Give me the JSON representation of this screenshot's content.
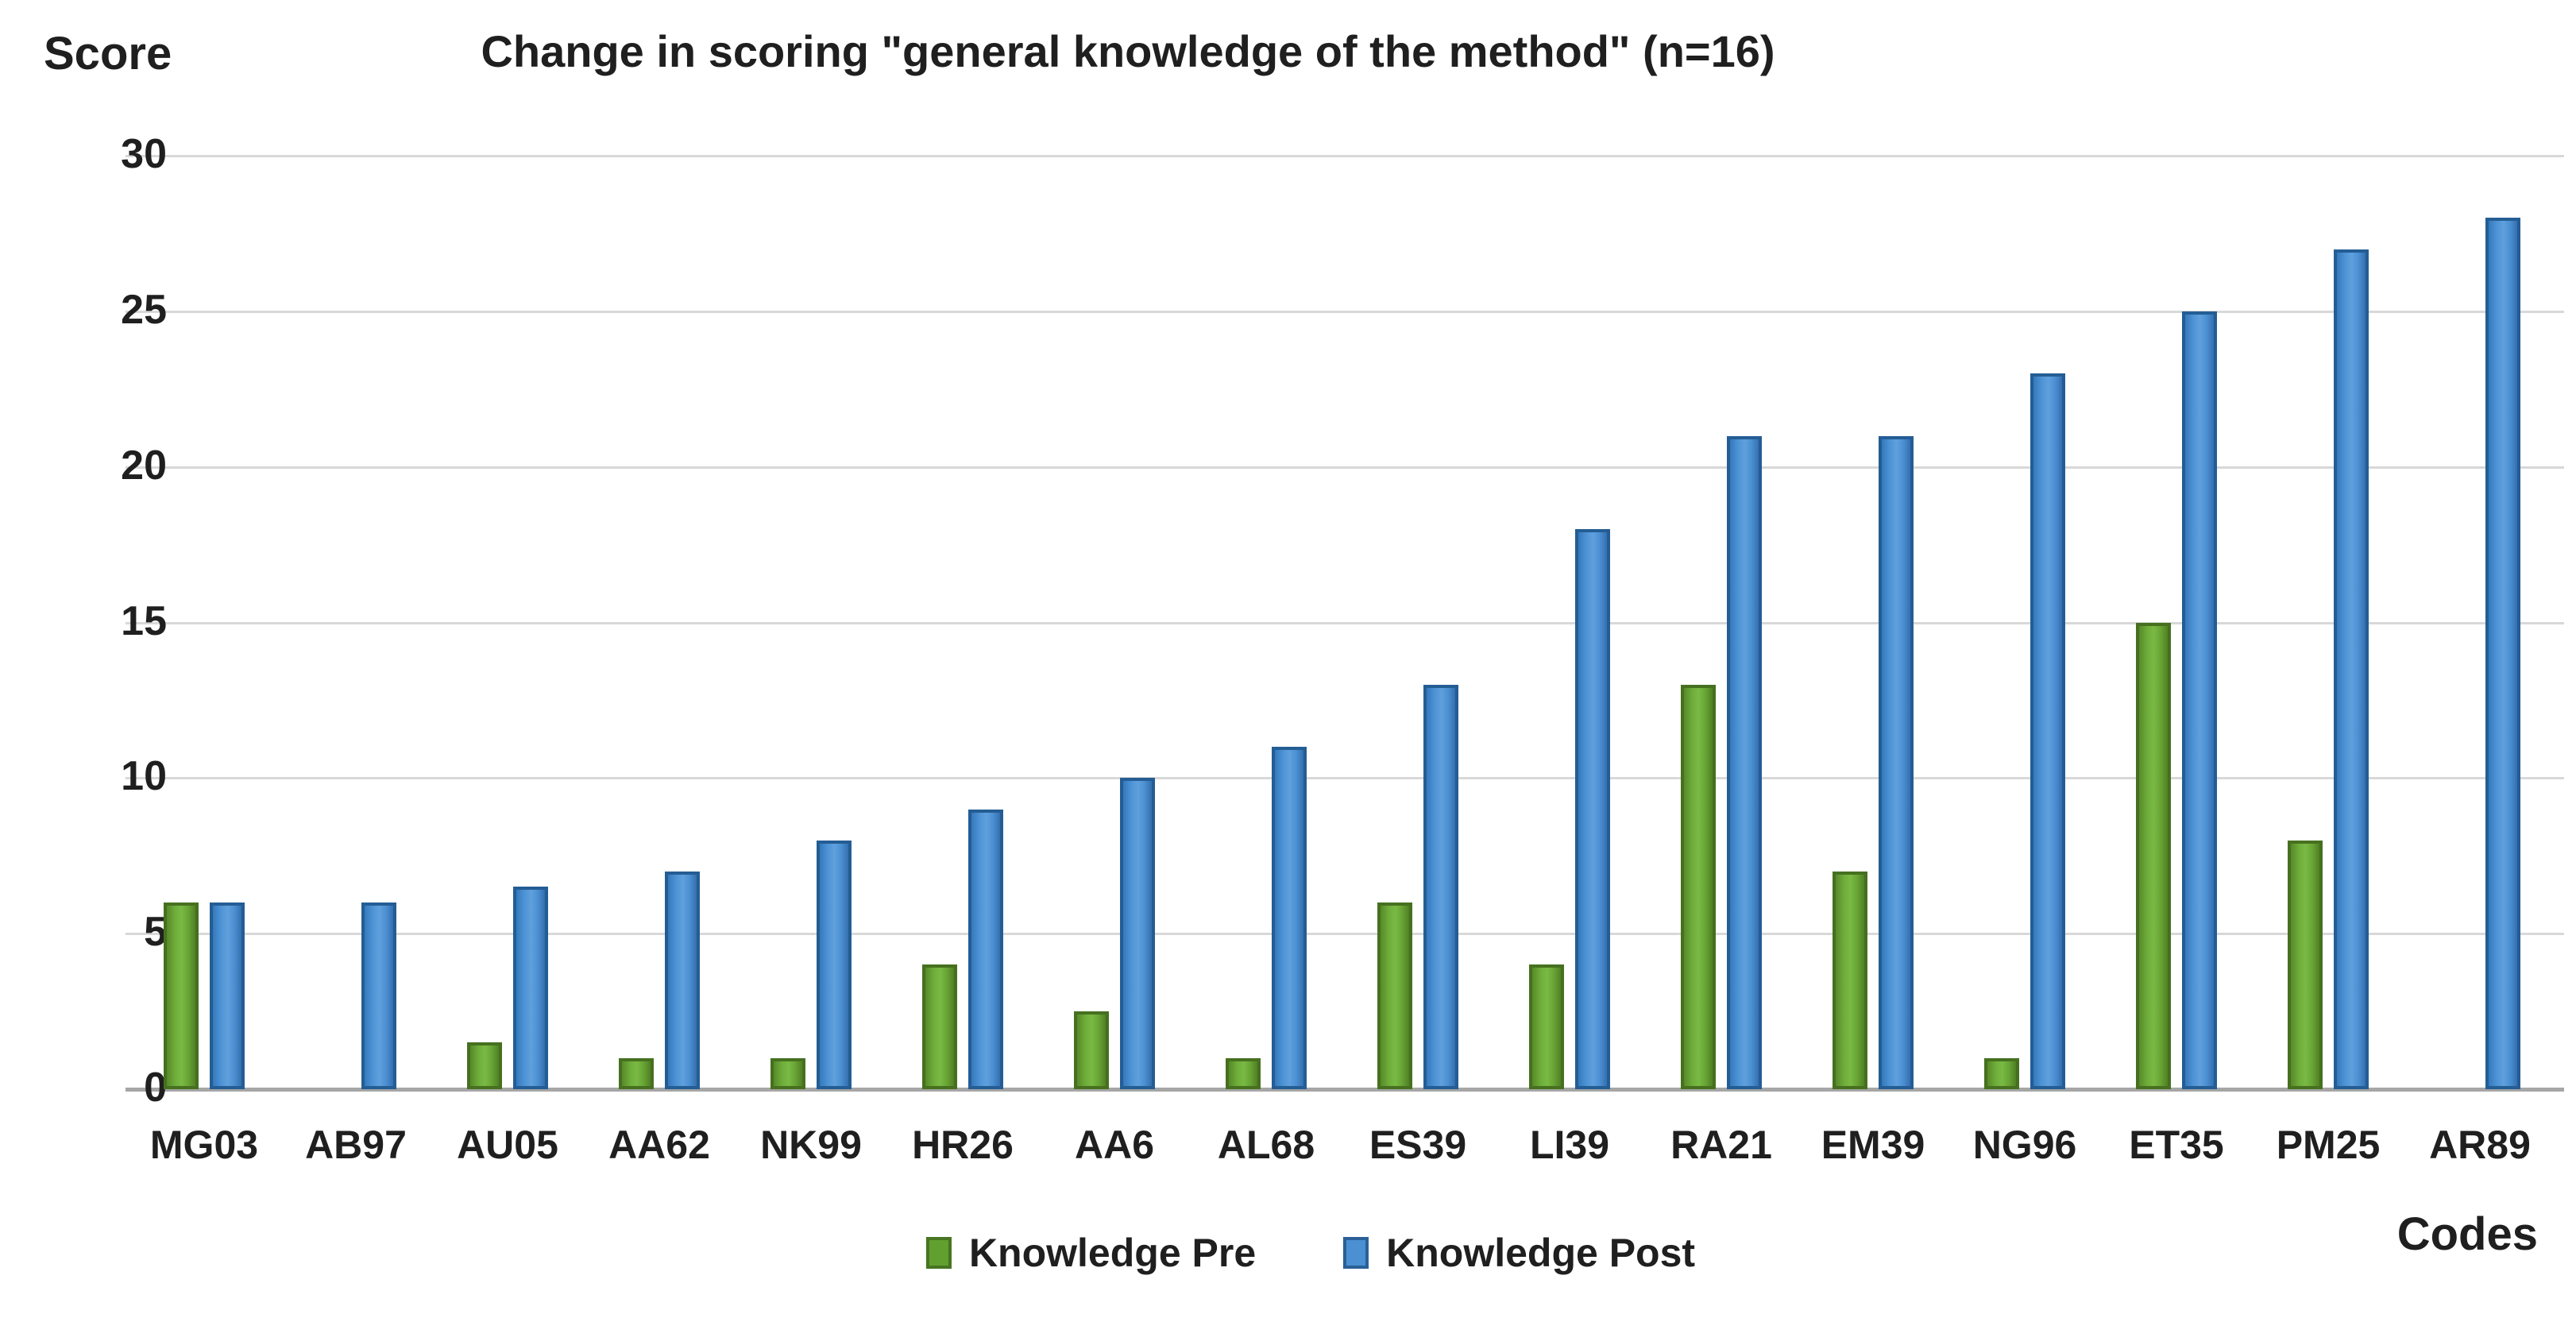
{
  "chart_data": {
    "type": "bar",
    "title": "Change in scoring \"general knowledge of the method\" (n=16)",
    "ylabel": "Score",
    "xlabel": "Codes",
    "categories": [
      "MG03",
      "AB97",
      "AU05",
      "AA62",
      "NK99",
      "HR26",
      "AA6",
      "AL68",
      "ES39",
      "LI39",
      "RA21",
      "EM39",
      "NG96",
      "ET35",
      "PM25",
      "AR89"
    ],
    "series": [
      {
        "name": "Knowledge Pre",
        "color": "#6fae3b",
        "border": "#46701f",
        "values": [
          6,
          0,
          1.5,
          1,
          1,
          4,
          2.5,
          1,
          6,
          4,
          13,
          7,
          1,
          15,
          8,
          0
        ]
      },
      {
        "name": "Knowledge Post",
        "color": "#4f95d6",
        "border": "#245d94",
        "values": [
          6,
          6,
          6.5,
          7,
          8,
          9,
          10,
          11,
          13,
          18,
          21,
          21,
          23,
          25,
          27,
          28
        ]
      }
    ],
    "ylim": [
      0,
      30
    ],
    "yticks": [
      0,
      5,
      10,
      15,
      20,
      25,
      30
    ],
    "grid": "horizontal",
    "legend_position": "bottom",
    "gridline_color": "#d8d8d8",
    "baseline_color": "#a6a6a6"
  }
}
